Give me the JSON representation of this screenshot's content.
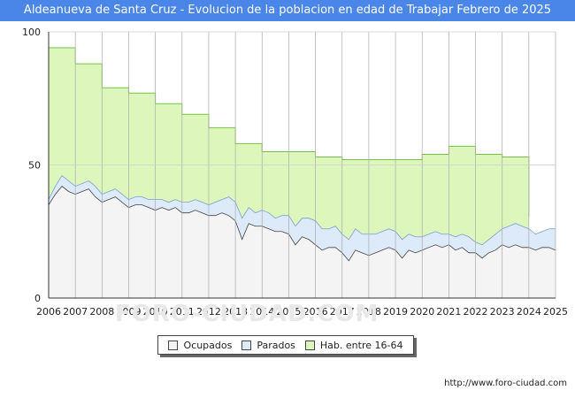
{
  "page": {
    "title": "Aldeanueva de Santa Cruz - Evolucion de la poblacion en edad de Trabajar Febrero de 2025",
    "watermark": "FORO-CIUDAD.COM",
    "credit": "http://www.foro-ciudad.com"
  },
  "colors": {
    "title_bg": "#4a86e8",
    "hab": "#ddf6bc",
    "hab_line": "#77c242",
    "parados": "#ddeafa",
    "parados_line": "#7b9fd0",
    "ocupados": "#f4f4f4",
    "ocupados_line": "#444444",
    "grid": "#cccccc"
  },
  "chart_data": {
    "type": "area",
    "title": "Aldeanueva de Santa Cruz - Evolucion de la poblacion en edad de Trabajar Febrero de 2025",
    "xlabel": "",
    "ylabel": "",
    "xlim": [
      2006,
      2025
    ],
    "ylim": [
      0,
      100
    ],
    "x_ticks": [
      "2006",
      "2007",
      "2008",
      "2009",
      "2010",
      "2011",
      "2012",
      "2013",
      "2014",
      "2015",
      "2016",
      "2017",
      "2018",
      "2019",
      "2020",
      "2021",
      "2022",
      "2023",
      "2024",
      "2025"
    ],
    "y_ticks": [
      "0",
      "50",
      "100"
    ],
    "legend": {
      "position": "bottom-center",
      "items": [
        {
          "key": "ocupados",
          "label": "Ocupados"
        },
        {
          "key": "parados",
          "label": "Parados"
        },
        {
          "key": "hab",
          "label": "Hab. entre 16-64"
        }
      ]
    },
    "series": [
      {
        "name": "Hab. entre 16-64",
        "key": "hab",
        "x": [
          2006,
          2007,
          2008,
          2009,
          2010,
          2011,
          2012,
          2013,
          2014,
          2015,
          2016,
          2017,
          2018,
          2019,
          2020,
          2021,
          2022,
          2023,
          2024.0
        ],
        "values": [
          94,
          88,
          79,
          77,
          73,
          69,
          64,
          58,
          55,
          55,
          53,
          52,
          52,
          52,
          54,
          57,
          54,
          53,
          31
        ],
        "step": true,
        "end_x": 2024.0
      },
      {
        "name": "Parados",
        "key": "parados",
        "x": [
          2006.0,
          2006.25,
          2006.5,
          2006.75,
          2007.0,
          2007.25,
          2007.5,
          2007.75,
          2008.0,
          2008.25,
          2008.5,
          2008.75,
          2009.0,
          2009.25,
          2009.5,
          2009.75,
          2010.0,
          2010.25,
          2010.5,
          2010.75,
          2011.0,
          2011.25,
          2011.5,
          2011.75,
          2012.0,
          2012.25,
          2012.5,
          2012.75,
          2013.0,
          2013.25,
          2013.5,
          2013.75,
          2014.0,
          2014.25,
          2014.5,
          2014.75,
          2015.0,
          2015.25,
          2015.5,
          2015.75,
          2016.0,
          2016.25,
          2016.5,
          2016.75,
          2017.0,
          2017.25,
          2017.5,
          2017.75,
          2018.0,
          2018.25,
          2018.5,
          2018.75,
          2019.0,
          2019.25,
          2019.5,
          2019.75,
          2020.0,
          2020.25,
          2020.5,
          2020.75,
          2021.0,
          2021.25,
          2021.5,
          2021.75,
          2022.0,
          2022.25,
          2022.5,
          2022.75,
          2023.0,
          2023.25,
          2023.5,
          2023.75,
          2024.0,
          2024.25,
          2024.5,
          2024.75,
          2025.0
        ],
        "values": [
          37,
          42,
          46,
          44,
          42,
          43,
          44,
          42,
          39,
          40,
          41,
          39,
          37,
          38,
          38,
          37,
          37,
          37,
          36,
          37,
          36,
          36,
          37,
          36,
          35,
          36,
          37,
          38,
          36,
          30,
          34,
          32,
          33,
          32,
          30,
          31,
          31,
          27,
          30,
          30,
          29,
          26,
          26,
          27,
          24,
          22,
          26,
          24,
          24,
          24,
          25,
          26,
          25,
          22,
          24,
          23,
          23,
          24,
          25,
          24,
          24,
          23,
          24,
          23,
          21,
          20,
          22,
          24,
          26,
          27,
          28,
          27,
          26,
          24,
          25,
          26,
          26
        ]
      },
      {
        "name": "Ocupados",
        "key": "ocupados",
        "x": [
          2006.0,
          2006.25,
          2006.5,
          2006.75,
          2007.0,
          2007.25,
          2007.5,
          2007.75,
          2008.0,
          2008.25,
          2008.5,
          2008.75,
          2009.0,
          2009.25,
          2009.5,
          2009.75,
          2010.0,
          2010.25,
          2010.5,
          2010.75,
          2011.0,
          2011.25,
          2011.5,
          2011.75,
          2012.0,
          2012.25,
          2012.5,
          2012.75,
          2013.0,
          2013.25,
          2013.5,
          2013.75,
          2014.0,
          2014.25,
          2014.5,
          2014.75,
          2015.0,
          2015.25,
          2015.5,
          2015.75,
          2016.0,
          2016.25,
          2016.5,
          2016.75,
          2017.0,
          2017.25,
          2017.5,
          2017.75,
          2018.0,
          2018.25,
          2018.5,
          2018.75,
          2019.0,
          2019.25,
          2019.5,
          2019.75,
          2020.0,
          2020.25,
          2020.5,
          2020.75,
          2021.0,
          2021.25,
          2021.5,
          2021.75,
          2022.0,
          2022.25,
          2022.5,
          2022.75,
          2023.0,
          2023.25,
          2023.5,
          2023.75,
          2024.0,
          2024.25,
          2024.5,
          2024.75,
          2025.0
        ],
        "values": [
          35,
          39,
          42,
          40,
          39,
          40,
          41,
          38,
          36,
          37,
          38,
          36,
          34,
          35,
          35,
          34,
          33,
          34,
          33,
          34,
          32,
          32,
          33,
          32,
          31,
          31,
          32,
          31,
          29,
          22,
          28,
          27,
          27,
          26,
          25,
          25,
          24,
          20,
          23,
          22,
          20,
          18,
          19,
          19,
          17,
          14,
          18,
          17,
          16,
          17,
          18,
          19,
          18,
          15,
          18,
          17,
          18,
          19,
          20,
          19,
          20,
          18,
          19,
          17,
          17,
          15,
          17,
          18,
          20,
          19,
          20,
          19,
          19,
          18,
          19,
          19,
          18
        ]
      }
    ]
  }
}
